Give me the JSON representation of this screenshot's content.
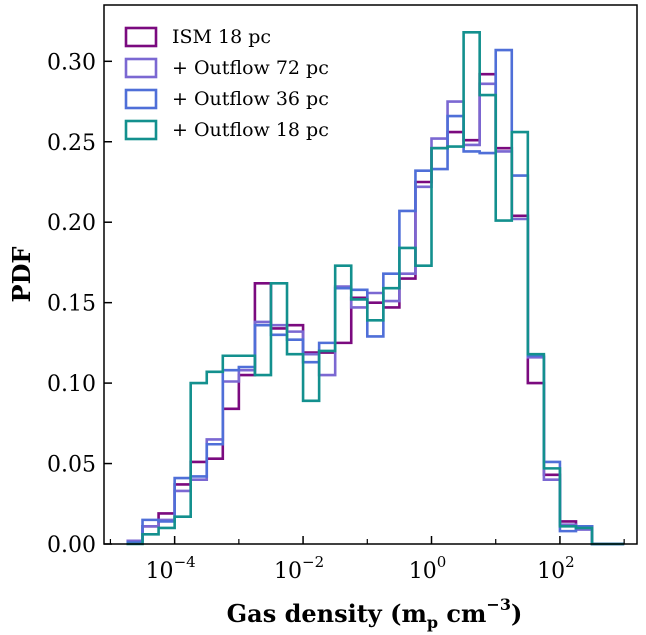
{
  "chart_data": {
    "type": "step-histogram",
    "xlabel": "Gas density (m",
    "xlabel_sub": "p",
    "xlabel_mid": " cm",
    "xlabel_sup": "−3",
    "xlabel_end": ")",
    "ylabel": "PDF",
    "xscale": "log",
    "xlim_log10": [
      -5.1,
      3.2
    ],
    "ylim": [
      0.0,
      0.335
    ],
    "yticks": [
      {
        "value": 0.0,
        "label": "0.00"
      },
      {
        "value": 0.05,
        "label": "0.05"
      },
      {
        "value": 0.1,
        "label": "0.10"
      },
      {
        "value": 0.15,
        "label": "0.15"
      },
      {
        "value": 0.2,
        "label": "0.20"
      },
      {
        "value": 0.25,
        "label": "0.25"
      },
      {
        "value": 0.3,
        "label": "0.30"
      }
    ],
    "xticks": [
      {
        "log10": -4,
        "base": "10",
        "exp": "−4"
      },
      {
        "log10": -2,
        "base": "10",
        "exp": "−2"
      },
      {
        "log10": 0,
        "base": "10",
        "exp": "0"
      },
      {
        "log10": 2,
        "base": "10",
        "exp": "2"
      }
    ],
    "legend_position": "top-left",
    "bin_edges_log10": [
      -4.75,
      -4.5,
      -4.25,
      -4.0,
      -3.75,
      -3.5,
      -3.25,
      -3.0,
      -2.75,
      -2.5,
      -2.25,
      -2.0,
      -1.75,
      -1.5,
      -1.25,
      -1.0,
      -0.75,
      -0.5,
      -0.25,
      0.0,
      0.25,
      0.5,
      0.75,
      1.0,
      1.25,
      1.5,
      1.75,
      2.0,
      2.25,
      2.5,
      2.75,
      3.0
    ],
    "series": [
      {
        "name": "ISM 18 pc",
        "color": "#7b0a7f",
        "values": [
          0.002,
          0.011,
          0.019,
          0.037,
          0.051,
          0.053,
          0.084,
          0.105,
          0.162,
          0.134,
          0.136,
          0.119,
          0.119,
          0.125,
          0.153,
          0.15,
          0.147,
          0.165,
          0.225,
          0.246,
          0.256,
          0.251,
          0.292,
          0.246,
          0.204,
          0.1,
          0.043,
          0.014,
          0.011,
          0.0,
          0.0
        ]
      },
      {
        "name": "+ Outflow 72 pc",
        "color": "#7b68d2",
        "values": [
          0.002,
          0.011,
          0.015,
          0.033,
          0.04,
          0.065,
          0.101,
          0.108,
          0.138,
          0.136,
          0.132,
          0.118,
          0.105,
          0.16,
          0.147,
          0.156,
          0.151,
          0.168,
          0.222,
          0.252,
          0.275,
          0.248,
          0.286,
          0.244,
          0.202,
          0.116,
          0.04,
          0.012,
          0.009,
          0.0,
          0.0
        ]
      },
      {
        "name": "+ Outflow 36 pc",
        "color": "#4f6fd8",
        "values": [
          0.001,
          0.015,
          0.014,
          0.041,
          0.042,
          0.062,
          0.108,
          0.11,
          0.136,
          0.13,
          0.127,
          0.113,
          0.125,
          0.159,
          0.158,
          0.129,
          0.168,
          0.207,
          0.232,
          0.233,
          0.266,
          0.244,
          0.243,
          0.307,
          0.229,
          0.117,
          0.051,
          0.008,
          0.011,
          0.0,
          0.0
        ]
      },
      {
        "name": "+ Outflow 18 pc",
        "color": "#13908e",
        "values": [
          0.0,
          0.006,
          0.01,
          0.017,
          0.1,
          0.107,
          0.117,
          0.117,
          0.105,
          0.162,
          0.118,
          0.089,
          0.12,
          0.173,
          0.152,
          0.139,
          0.159,
          0.184,
          0.173,
          0.246,
          0.247,
          0.318,
          0.279,
          0.201,
          0.256,
          0.118,
          0.047,
          0.011,
          0.01,
          0.0,
          0.0
        ]
      }
    ]
  }
}
